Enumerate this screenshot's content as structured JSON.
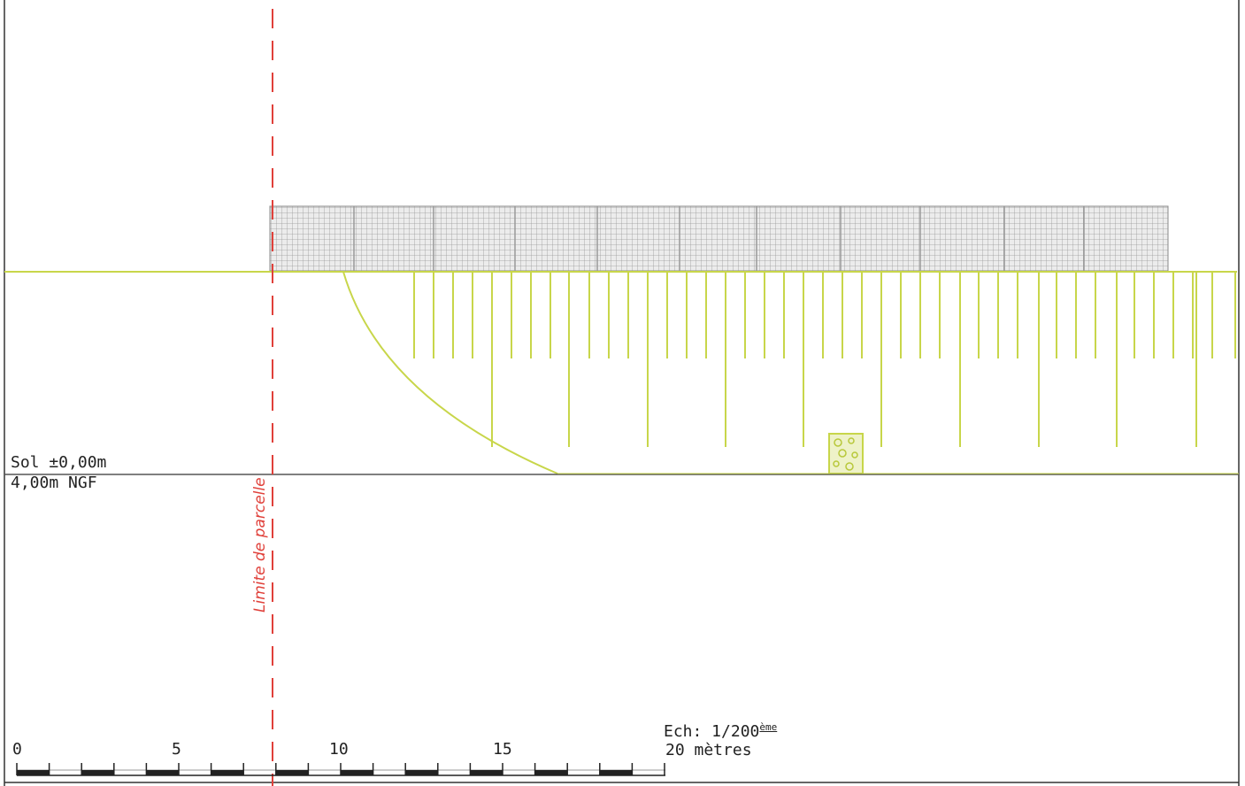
{
  "labels": {
    "ground_level": "Sol ±0,00m",
    "ngf": "4,00m NGF",
    "limit": "Limite de parcelle",
    "scale_title": "Ech: 1/200",
    "scale_sup": "ème",
    "scale_length": "20 mètres"
  },
  "scale_ticks": [
    "0",
    "5",
    "10",
    "15"
  ],
  "colors": {
    "root": "#c8d64a",
    "limit": "#e0403a",
    "panels": "#9a9a9a",
    "line": "#555555"
  }
}
